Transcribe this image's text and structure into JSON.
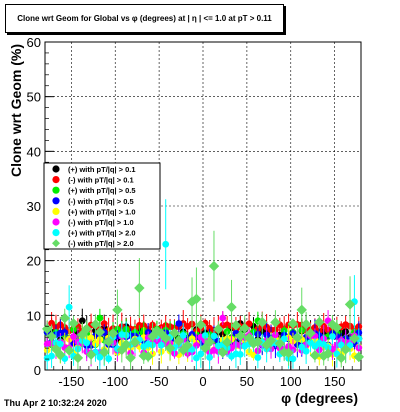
{
  "timestamp": "Thu Apr  2 10:32:24 2020",
  "chart_data": {
    "type": "scatter",
    "title": "Clone wrt Geom for Global vs φ (degrees) at | η | <= 1.0 at pT > 0.11",
    "xlabel": "φ (degrees)",
    "ylabel": "Clone wrt Geom (%)",
    "xlim": [
      -180,
      180
    ],
    "ylim": [
      0,
      60
    ],
    "x_ticks": [
      -150,
      -100,
      -50,
      0,
      50,
      100,
      150
    ],
    "y_ticks": [
      0,
      10,
      20,
      30,
      40,
      50,
      60
    ],
    "grid": true,
    "legend_position": "left-middle",
    "bin_width_degrees": 5,
    "series": [
      {
        "name": "(+) with pT/|q| > 0.1",
        "color": "#000000",
        "marker": "circle",
        "typical_range": [
          5.0,
          8.0
        ],
        "spikes": [
          [
            -140,
            9.0
          ],
          [
            40,
            8.5
          ]
        ]
      },
      {
        "name": "(-) with pT/|q| > 0.1",
        "color": "#ff0000",
        "marker": "circle",
        "typical_range": [
          7.0,
          8.6
        ],
        "spikes": []
      },
      {
        "name": "(+) with pT/|q| > 0.5",
        "color": "#00ee00",
        "marker": "circle",
        "typical_range": [
          4.5,
          7.5
        ],
        "spikes": [
          [
            -120,
            9.5
          ],
          [
            60,
            9.0
          ]
        ]
      },
      {
        "name": "(-) with pT/|q| > 0.5",
        "color": "#0000ff",
        "marker": "circle",
        "typical_range": [
          4.0,
          7.0
        ],
        "spikes": [
          [
            -30,
            8.5
          ]
        ]
      },
      {
        "name": "(+) with pT/|q| > 1.0",
        "color": "#ffff00",
        "marker": "circle",
        "typical_range": [
          2.5,
          6.0
        ],
        "spikes": []
      },
      {
        "name": "(-) with pT/|q| > 1.0",
        "color": "#ff00ff",
        "marker": "circle",
        "typical_range": [
          3.0,
          6.5
        ],
        "spikes": [
          [
            20,
            9.5
          ],
          [
            140,
            9.0
          ]
        ]
      },
      {
        "name": "(+) with pT/|q| > 2.0",
        "color": "#00ffff",
        "marker": "circle",
        "typical_range": [
          2.0,
          6.5
        ],
        "spikes": [
          [
            -45,
            23.0
          ],
          [
            -155,
            11.5
          ],
          [
            170,
            12.5
          ]
        ]
      },
      {
        "name": "(-) with pT/|q| > 2.0",
        "color": "#66dd66",
        "marker": "diamond",
        "typical_range": [
          2.0,
          9.0
        ],
        "spikes": [
          [
            12,
            19.0
          ],
          [
            -75,
            15.0
          ],
          [
            -15,
            12.5
          ],
          [
            -10,
            13.0
          ],
          [
            -100,
            11.0
          ],
          [
            165,
            12.0
          ],
          [
            30,
            11.5
          ],
          [
            -160,
            9.5
          ],
          [
            110,
            11.0
          ],
          [
            -135,
            7.5
          ]
        ]
      }
    ]
  }
}
